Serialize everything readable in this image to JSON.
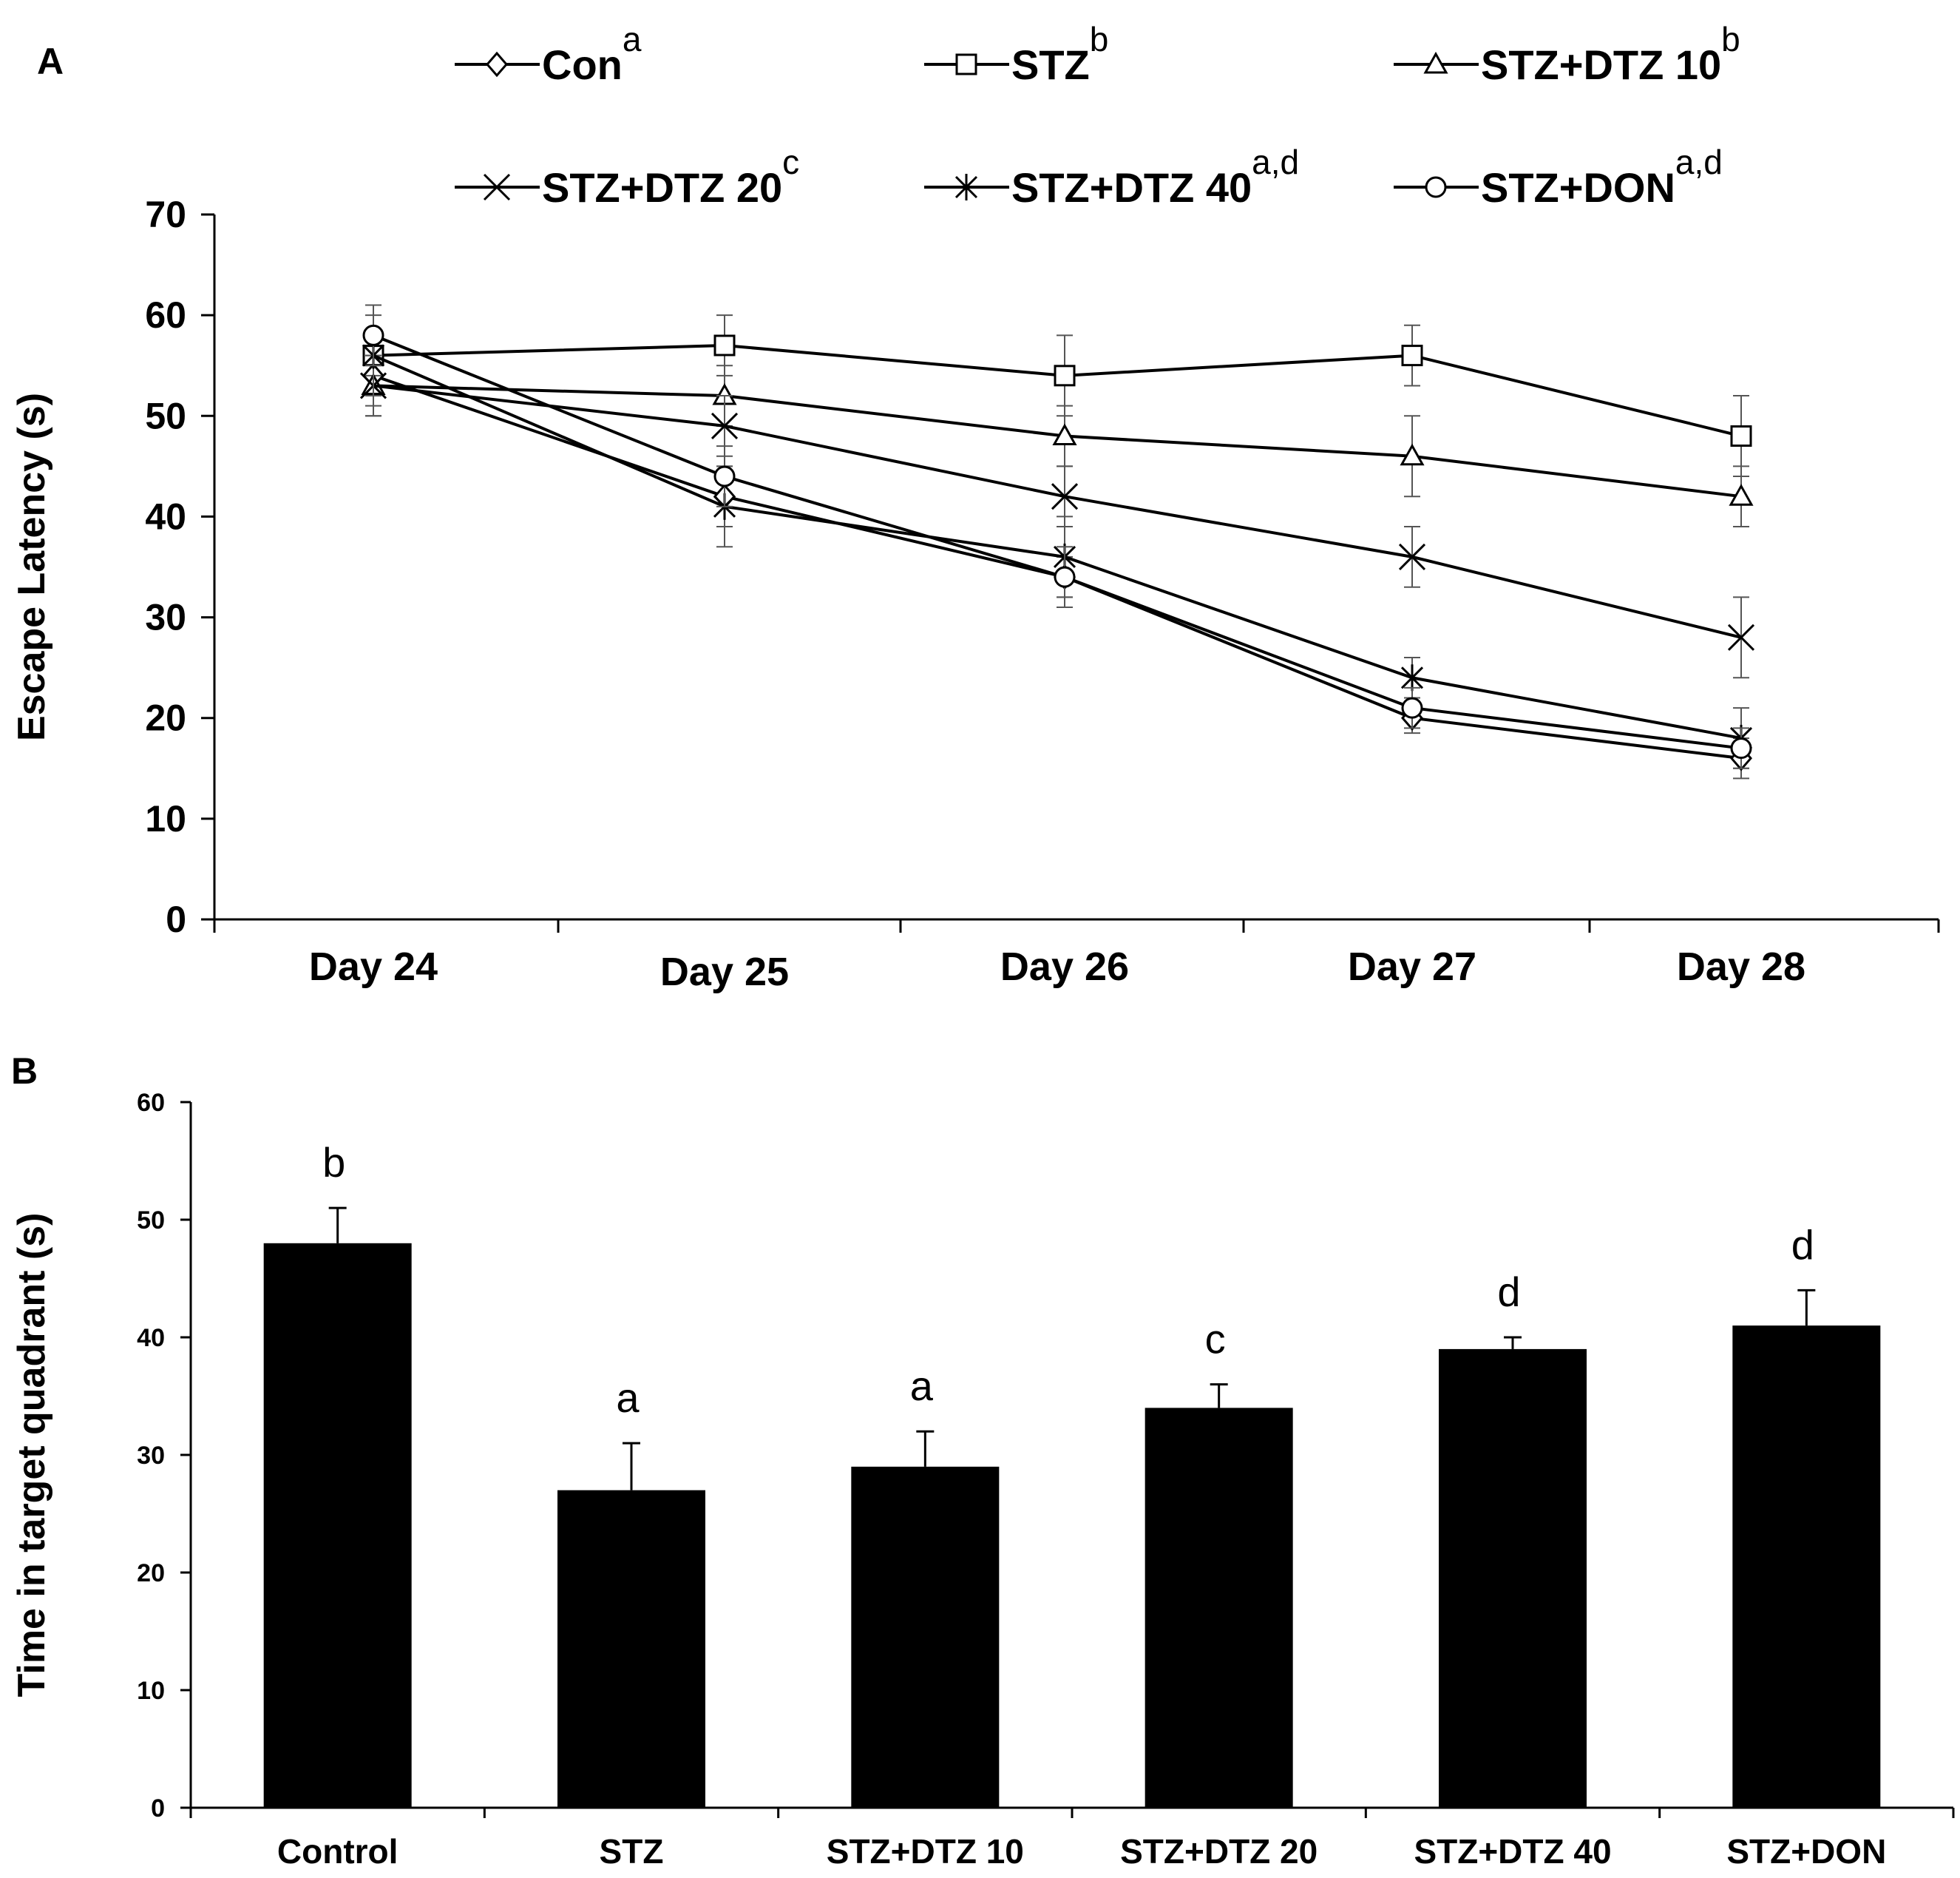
{
  "chart_data": [
    {
      "panel": "A",
      "type": "line",
      "title": "",
      "xlabel": "",
      "ylabel": "Escape Latency (s)",
      "ylim": [
        0,
        70
      ],
      "yticks": [
        0,
        10,
        20,
        30,
        40,
        50,
        60,
        70
      ],
      "categories": [
        "Day 24",
        "Day 25",
        "Day 26",
        "Day 27",
        "Day 28"
      ],
      "grid": false,
      "legend_position": "top",
      "series": [
        {
          "name": "Con",
          "sup": "a",
          "marker": "diamond",
          "values": [
            54,
            42,
            34,
            20,
            16
          ],
          "errors": [
            3,
            3,
            2,
            1.5,
            2
          ]
        },
        {
          "name": "STZ",
          "sup": "b",
          "marker": "square",
          "values": [
            56,
            57,
            54,
            56,
            48
          ],
          "errors": [
            2,
            3,
            4,
            3,
            4
          ]
        },
        {
          "name": "STZ+DTZ 10",
          "sup": "b",
          "marker": "triangle",
          "values": [
            53,
            52,
            48,
            46,
            42
          ],
          "errors": [
            3,
            3,
            3,
            4,
            3
          ]
        },
        {
          "name": "STZ+DTZ 20",
          "sup": "c",
          "marker": "x",
          "values": [
            53,
            49,
            42,
            36,
            28
          ],
          "errors": [
            3,
            3,
            3,
            3,
            4
          ]
        },
        {
          "name": "STZ+DTZ 40",
          "sup": "a,d",
          "marker": "asterisk",
          "values": [
            56,
            41,
            36,
            24,
            18
          ],
          "errors": [
            4,
            4,
            4,
            2,
            3
          ]
        },
        {
          "name": "STZ+DON",
          "sup": "a,d",
          "marker": "circle",
          "values": [
            58,
            44,
            34,
            21,
            17
          ],
          "errors": [
            3,
            3,
            3,
            2,
            2
          ]
        }
      ]
    },
    {
      "panel": "B",
      "type": "bar",
      "title": "",
      "xlabel": "",
      "ylabel": "Time in target quadrant (s)",
      "ylim": [
        0,
        60
      ],
      "yticks": [
        0,
        10,
        20,
        30,
        40,
        50,
        60
      ],
      "categories": [
        "Control",
        "STZ",
        "STZ+DTZ  10",
        "STZ+DTZ  20",
        "STZ+DTZ  40",
        "STZ+DON"
      ],
      "values": [
        48,
        27,
        29,
        34,
        39,
        41
      ],
      "errors": [
        3,
        4,
        3,
        2,
        1,
        3
      ],
      "annotations": [
        "b",
        "a",
        "a",
        "c",
        "d",
        "d"
      ],
      "bar_color": "#000000",
      "grid": false
    }
  ],
  "panel_labels": [
    "A",
    "B"
  ]
}
